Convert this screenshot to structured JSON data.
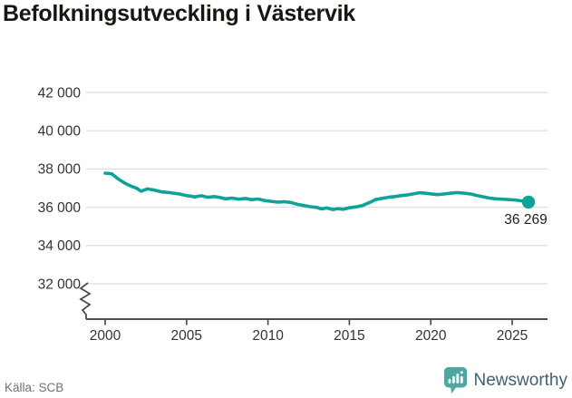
{
  "title": "Befolkningsutveckling i Västervik",
  "footer": {
    "source": "Källa: SCB",
    "brand": "Newsworthy"
  },
  "colors": {
    "line": "#0fa296",
    "logo_teal": "#4ca8a0",
    "brand_text": "#42606d",
    "axis_text": "#333333",
    "axis_line": "#4d4d4d",
    "grid": "#e0e0e0",
    "title_text": "#14180f",
    "end_label_text": "#222222",
    "source_text": "#70707a"
  },
  "chart_data": {
    "type": "line",
    "title": "Befolkningsutveckling i Västervik",
    "xlabel": "",
    "ylabel": "",
    "grid": "horizontal-only",
    "legend": "none",
    "axis_break": true,
    "x_ticks": [
      {
        "value": 2000,
        "label": "2000"
      },
      {
        "value": 2005,
        "label": "2005"
      },
      {
        "value": 2010,
        "label": "2010"
      },
      {
        "value": 2015,
        "label": "2015"
      },
      {
        "value": 2020,
        "label": "2020"
      },
      {
        "value": 2025,
        "label": "2025"
      }
    ],
    "y_ticks": [
      {
        "value": 32000,
        "label": "32 000"
      },
      {
        "value": 34000,
        "label": "34 000"
      },
      {
        "value": 36000,
        "label": "36 000"
      },
      {
        "value": 38000,
        "label": "38 000"
      },
      {
        "value": 40000,
        "label": "40 000"
      },
      {
        "value": 42000,
        "label": "42 000"
      }
    ],
    "xlim": [
      1998.8,
      2027.2
    ],
    "ylim": [
      32000,
      42000
    ],
    "end_label": "36 269",
    "last_value": 36269,
    "series": [
      {
        "name": "Befolkning",
        "points": [
          [
            2000,
            37780
          ],
          [
            2000.4,
            37750
          ],
          [
            2000.8,
            37480
          ],
          [
            2001.2,
            37260
          ],
          [
            2001.6,
            37100
          ],
          [
            2001.9,
            37010
          ],
          [
            2002.2,
            36840
          ],
          [
            2002.6,
            36960
          ],
          [
            2003,
            36900
          ],
          [
            2003.5,
            36800
          ],
          [
            2004,
            36760
          ],
          [
            2004.5,
            36700
          ],
          [
            2005,
            36610
          ],
          [
            2005.5,
            36540
          ],
          [
            2005.9,
            36600
          ],
          [
            2006.3,
            36520
          ],
          [
            2006.7,
            36560
          ],
          [
            2007,
            36520
          ],
          [
            2007.4,
            36440
          ],
          [
            2007.8,
            36480
          ],
          [
            2008.2,
            36420
          ],
          [
            2008.6,
            36460
          ],
          [
            2009,
            36400
          ],
          [
            2009.4,
            36430
          ],
          [
            2009.8,
            36350
          ],
          [
            2010.2,
            36310
          ],
          [
            2010.6,
            36270
          ],
          [
            2011,
            36290
          ],
          [
            2011.4,
            36250
          ],
          [
            2011.8,
            36150
          ],
          [
            2012.2,
            36090
          ],
          [
            2012.6,
            36030
          ],
          [
            2013,
            35990
          ],
          [
            2013.3,
            35910
          ],
          [
            2013.6,
            35960
          ],
          [
            2014,
            35880
          ],
          [
            2014.3,
            35930
          ],
          [
            2014.6,
            35890
          ],
          [
            2015,
            35970
          ],
          [
            2015.4,
            36020
          ],
          [
            2015.8,
            36090
          ],
          [
            2016.2,
            36230
          ],
          [
            2016.6,
            36400
          ],
          [
            2017,
            36460
          ],
          [
            2017.4,
            36520
          ],
          [
            2017.8,
            36560
          ],
          [
            2018.2,
            36610
          ],
          [
            2018.6,
            36650
          ],
          [
            2019,
            36710
          ],
          [
            2019.3,
            36760
          ],
          [
            2019.7,
            36730
          ],
          [
            2020,
            36700
          ],
          [
            2020.4,
            36660
          ],
          [
            2020.8,
            36690
          ],
          [
            2021.2,
            36730
          ],
          [
            2021.6,
            36770
          ],
          [
            2022,
            36740
          ],
          [
            2022.4,
            36700
          ],
          [
            2022.8,
            36620
          ],
          [
            2023.2,
            36550
          ],
          [
            2023.6,
            36480
          ],
          [
            2024,
            36440
          ],
          [
            2024.4,
            36420
          ],
          [
            2024.8,
            36400
          ],
          [
            2025.2,
            36380
          ],
          [
            2025.6,
            36330
          ],
          [
            2026,
            36269
          ]
        ]
      }
    ]
  }
}
